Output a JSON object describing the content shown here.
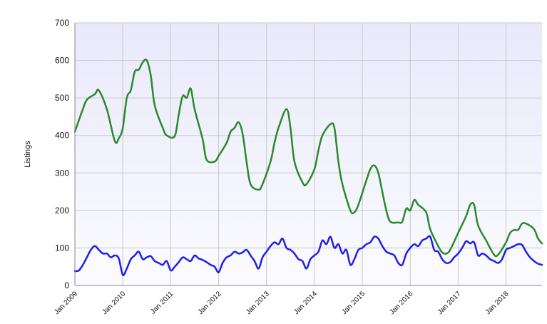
{
  "chart_data": {
    "type": "line",
    "title": "",
    "xlabel": "",
    "ylabel": "Listings",
    "ylim": [
      0,
      700
    ],
    "yticks": [
      0,
      100,
      200,
      300,
      400,
      500,
      600,
      700
    ],
    "xlim": [
      "2009-01",
      "2018-10"
    ],
    "xtick_labels": [
      "Jan 2009",
      "Jan 2010",
      "Jan 2011",
      "Jan 2012",
      "Jan 2013",
      "Jan 2014",
      "Jan 2015",
      "Jan 2016",
      "Jan 2017",
      "Jan 2018"
    ],
    "grid": true,
    "legend": "none",
    "series": [
      {
        "color": "#2a8a2a",
        "points": [
          [
            "2009-01",
            410
          ],
          [
            "2009-03",
            470
          ],
          [
            "2009-04",
            495
          ],
          [
            "2009-06",
            510
          ],
          [
            "2009-07",
            520
          ],
          [
            "2009-09",
            470
          ],
          [
            "2009-11",
            385
          ],
          [
            "2009-12",
            392
          ],
          [
            "2010-01",
            420
          ],
          [
            "2010-02",
            500
          ],
          [
            "2010-03",
            520
          ],
          [
            "2010-04",
            570
          ],
          [
            "2010-05",
            575
          ],
          [
            "2010-06",
            595
          ],
          [
            "2010-07",
            600
          ],
          [
            "2010-08",
            560
          ],
          [
            "2010-09",
            480
          ],
          [
            "2010-11",
            420
          ],
          [
            "2010-12",
            400
          ],
          [
            "2011-02",
            398
          ],
          [
            "2011-03",
            455
          ],
          [
            "2011-04",
            505
          ],
          [
            "2011-05",
            500
          ],
          [
            "2011-06",
            525
          ],
          [
            "2011-07",
            470
          ],
          [
            "2011-09",
            390
          ],
          [
            "2011-10",
            335
          ],
          [
            "2011-12",
            330
          ],
          [
            "2012-01",
            345
          ],
          [
            "2012-03",
            380
          ],
          [
            "2012-04",
            410
          ],
          [
            "2012-05",
            420
          ],
          [
            "2012-06",
            435
          ],
          [
            "2012-07",
            405
          ],
          [
            "2012-08",
            330
          ],
          [
            "2012-09",
            270
          ],
          [
            "2012-11",
            255
          ],
          [
            "2012-12",
            270
          ],
          [
            "2013-02",
            330
          ],
          [
            "2013-03",
            380
          ],
          [
            "2013-04",
            420
          ],
          [
            "2013-06",
            470
          ],
          [
            "2013-07",
            420
          ],
          [
            "2013-08",
            330
          ],
          [
            "2013-10",
            275
          ],
          [
            "2013-11",
            270
          ],
          [
            "2014-01",
            310
          ],
          [
            "2014-02",
            360
          ],
          [
            "2014-03",
            400
          ],
          [
            "2014-05",
            430
          ],
          [
            "2014-06",
            420
          ],
          [
            "2014-07",
            330
          ],
          [
            "2014-08",
            270
          ],
          [
            "2014-10",
            200
          ],
          [
            "2014-11",
            195
          ],
          [
            "2014-12",
            215
          ],
          [
            "2015-02",
            280
          ],
          [
            "2015-03",
            310
          ],
          [
            "2015-04",
            320
          ],
          [
            "2015-05",
            300
          ],
          [
            "2015-06",
            250
          ],
          [
            "2015-07",
            200
          ],
          [
            "2015-08",
            170
          ],
          [
            "2015-10",
            168
          ],
          [
            "2015-11",
            170
          ],
          [
            "2015-12",
            205
          ],
          [
            "2016-01",
            200
          ],
          [
            "2016-02",
            228
          ],
          [
            "2016-03",
            215
          ],
          [
            "2016-05",
            195
          ],
          [
            "2016-06",
            150
          ],
          [
            "2016-08",
            105
          ],
          [
            "2016-09",
            88
          ],
          [
            "2016-10",
            85
          ],
          [
            "2016-11",
            95
          ],
          [
            "2017-01",
            140
          ],
          [
            "2017-03",
            185
          ],
          [
            "2017-04",
            215
          ],
          [
            "2017-05",
            215
          ],
          [
            "2017-06",
            160
          ],
          [
            "2017-08",
            120
          ],
          [
            "2017-10",
            82
          ],
          [
            "2017-11",
            82
          ],
          [
            "2018-01",
            115
          ],
          [
            "2018-02",
            140
          ],
          [
            "2018-03",
            148
          ],
          [
            "2018-04",
            148
          ],
          [
            "2018-05",
            165
          ],
          [
            "2018-06",
            165
          ],
          [
            "2018-08",
            150
          ],
          [
            "2018-09",
            125
          ],
          [
            "2018-10",
            112
          ]
        ]
      },
      {
        "color": "#1f1fe6",
        "points": [
          [
            "2009-01",
            38
          ],
          [
            "2009-02",
            40
          ],
          [
            "2009-03",
            55
          ],
          [
            "2009-04",
            75
          ],
          [
            "2009-05",
            95
          ],
          [
            "2009-06",
            105
          ],
          [
            "2009-07",
            95
          ],
          [
            "2009-08",
            85
          ],
          [
            "2009-09",
            85
          ],
          [
            "2009-10",
            75
          ],
          [
            "2009-11",
            80
          ],
          [
            "2009-12",
            72
          ],
          [
            "2010-01",
            28
          ],
          [
            "2010-02",
            45
          ],
          [
            "2010-03",
            70
          ],
          [
            "2010-04",
            80
          ],
          [
            "2010-05",
            90
          ],
          [
            "2010-06",
            70
          ],
          [
            "2010-07",
            75
          ],
          [
            "2010-08",
            78
          ],
          [
            "2010-09",
            65
          ],
          [
            "2010-10",
            60
          ],
          [
            "2010-11",
            55
          ],
          [
            "2010-12",
            65
          ],
          [
            "2011-01",
            40
          ],
          [
            "2011-02",
            50
          ],
          [
            "2011-03",
            62
          ],
          [
            "2011-04",
            75
          ],
          [
            "2011-05",
            70
          ],
          [
            "2011-06",
            65
          ],
          [
            "2011-07",
            80
          ],
          [
            "2011-08",
            72
          ],
          [
            "2011-09",
            68
          ],
          [
            "2011-10",
            62
          ],
          [
            "2011-11",
            55
          ],
          [
            "2011-12",
            50
          ],
          [
            "2012-01",
            35
          ],
          [
            "2012-02",
            60
          ],
          [
            "2012-03",
            75
          ],
          [
            "2012-04",
            80
          ],
          [
            "2012-05",
            90
          ],
          [
            "2012-06",
            85
          ],
          [
            "2012-07",
            88
          ],
          [
            "2012-08",
            95
          ],
          [
            "2012-09",
            80
          ],
          [
            "2012-10",
            65
          ],
          [
            "2012-11",
            45
          ],
          [
            "2012-12",
            75
          ],
          [
            "2013-01",
            90
          ],
          [
            "2013-02",
            105
          ],
          [
            "2013-03",
            115
          ],
          [
            "2013-04",
            110
          ],
          [
            "2013-05",
            125
          ],
          [
            "2013-06",
            100
          ],
          [
            "2013-07",
            95
          ],
          [
            "2013-08",
            85
          ],
          [
            "2013-09",
            70
          ],
          [
            "2013-10",
            65
          ],
          [
            "2013-11",
            45
          ],
          [
            "2013-12",
            70
          ],
          [
            "2014-01",
            80
          ],
          [
            "2014-02",
            90
          ],
          [
            "2014-03",
            120
          ],
          [
            "2014-04",
            110
          ],
          [
            "2014-05",
            130
          ],
          [
            "2014-06",
            100
          ],
          [
            "2014-07",
            110
          ],
          [
            "2014-08",
            85
          ],
          [
            "2014-09",
            95
          ],
          [
            "2014-10",
            55
          ],
          [
            "2014-11",
            70
          ],
          [
            "2014-12",
            95
          ],
          [
            "2015-01",
            100
          ],
          [
            "2015-02",
            110
          ],
          [
            "2015-03",
            115
          ],
          [
            "2015-04",
            130
          ],
          [
            "2015-05",
            125
          ],
          [
            "2015-06",
            105
          ],
          [
            "2015-07",
            90
          ],
          [
            "2015-08",
            85
          ],
          [
            "2015-09",
            80
          ],
          [
            "2015-10",
            60
          ],
          [
            "2015-11",
            55
          ],
          [
            "2015-12",
            85
          ],
          [
            "2016-01",
            100
          ],
          [
            "2016-02",
            110
          ],
          [
            "2016-03",
            105
          ],
          [
            "2016-04",
            120
          ],
          [
            "2016-05",
            125
          ],
          [
            "2016-06",
            130
          ],
          [
            "2016-07",
            95
          ],
          [
            "2016-08",
            90
          ],
          [
            "2016-09",
            70
          ],
          [
            "2016-10",
            60
          ],
          [
            "2016-11",
            62
          ],
          [
            "2016-12",
            75
          ],
          [
            "2017-01",
            85
          ],
          [
            "2017-02",
            100
          ],
          [
            "2017-03",
            118
          ],
          [
            "2017-04",
            112
          ],
          [
            "2017-05",
            115
          ],
          [
            "2017-06",
            80
          ],
          [
            "2017-07",
            85
          ],
          [
            "2017-08",
            80
          ],
          [
            "2017-09",
            70
          ],
          [
            "2017-10",
            65
          ],
          [
            "2017-11",
            60
          ],
          [
            "2017-12",
            70
          ],
          [
            "2018-01",
            95
          ],
          [
            "2018-02",
            100
          ],
          [
            "2018-03",
            105
          ],
          [
            "2018-04",
            110
          ],
          [
            "2018-05",
            108
          ],
          [
            "2018-06",
            90
          ],
          [
            "2018-07",
            75
          ],
          [
            "2018-08",
            65
          ],
          [
            "2018-09",
            58
          ],
          [
            "2018-10",
            55
          ]
        ]
      }
    ]
  }
}
